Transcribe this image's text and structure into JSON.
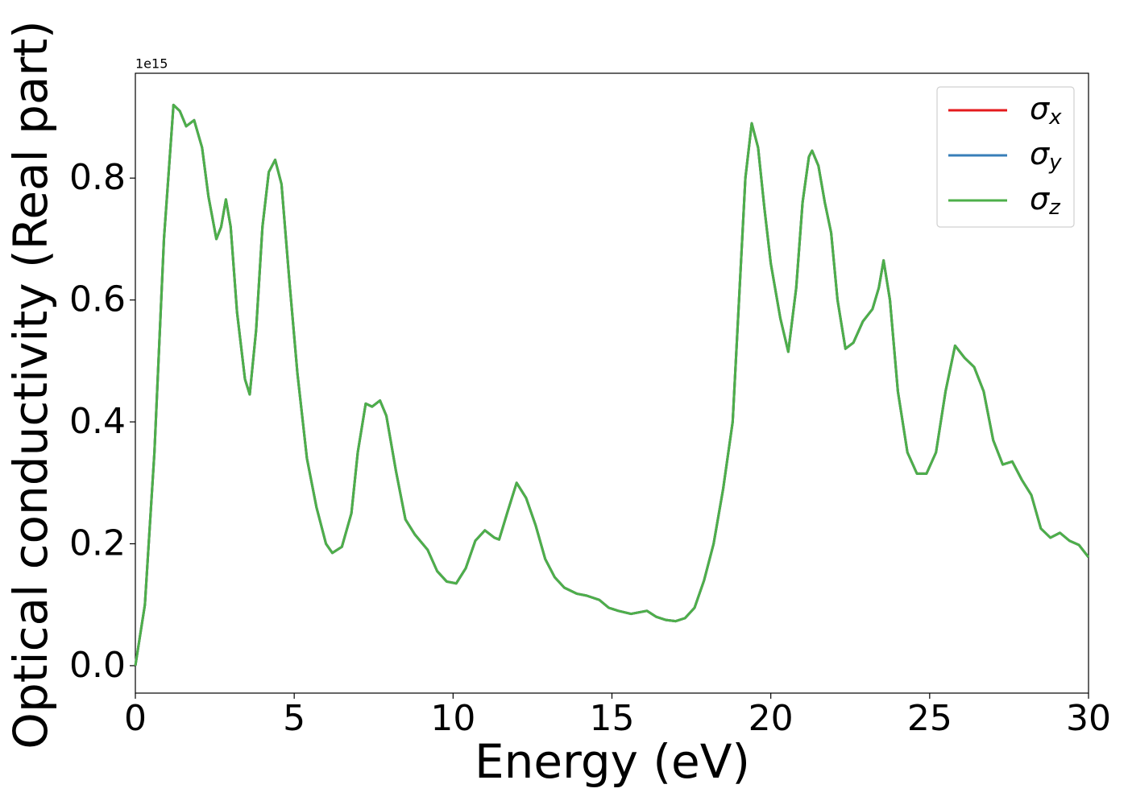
{
  "chart_data": {
    "type": "line",
    "xlabel": "Energy (eV)",
    "ylabel": "Optical conductivity (Real part)",
    "y_offset_label": "1e15",
    "x": [
      0,
      0.3,
      0.6,
      0.9,
      1.2,
      1.4,
      1.6,
      1.85,
      2.1,
      2.3,
      2.55,
      2.7,
      2.85,
      3.0,
      3.2,
      3.45,
      3.6,
      3.8,
      4.0,
      4.2,
      4.4,
      4.6,
      4.85,
      5.1,
      5.4,
      5.7,
      6.0,
      6.2,
      6.5,
      6.8,
      7.0,
      7.25,
      7.45,
      7.7,
      7.9,
      8.2,
      8.5,
      8.8,
      9.2,
      9.5,
      9.8,
      10.1,
      10.4,
      10.7,
      11.0,
      11.3,
      11.45,
      11.7,
      12.0,
      12.3,
      12.6,
      12.9,
      13.2,
      13.5,
      13.9,
      14.2,
      14.6,
      14.9,
      15.2,
      15.6,
      15.9,
      16.1,
      16.4,
      16.7,
      17.0,
      17.3,
      17.6,
      17.9,
      18.2,
      18.5,
      18.8,
      19.0,
      19.2,
      19.4,
      19.6,
      19.8,
      20.0,
      20.3,
      20.55,
      20.8,
      21.0,
      21.2,
      21.3,
      21.5,
      21.7,
      21.9,
      22.1,
      22.35,
      22.6,
      22.9,
      23.2,
      23.4,
      23.55,
      23.75,
      24.0,
      24.3,
      24.6,
      24.9,
      25.2,
      25.5,
      25.8,
      26.1,
      26.4,
      26.7,
      27.0,
      27.3,
      27.6,
      27.9,
      28.2,
      28.5,
      28.8,
      29.1,
      29.4,
      29.7,
      30.0
    ],
    "series": [
      {
        "name": "σx",
        "color": "#e41a1c",
        "values": [
          0,
          0.1,
          0.35,
          0.7,
          0.92,
          0.91,
          0.885,
          0.895,
          0.85,
          0.77,
          0.7,
          0.72,
          0.765,
          0.72,
          0.58,
          0.47,
          0.445,
          0.55,
          0.72,
          0.81,
          0.83,
          0.79,
          0.63,
          0.48,
          0.34,
          0.26,
          0.2,
          0.185,
          0.195,
          0.25,
          0.35,
          0.43,
          0.425,
          0.435,
          0.41,
          0.32,
          0.24,
          0.215,
          0.19,
          0.155,
          0.138,
          0.135,
          0.16,
          0.205,
          0.222,
          0.21,
          0.207,
          0.25,
          0.3,
          0.275,
          0.23,
          0.175,
          0.145,
          0.128,
          0.118,
          0.115,
          0.108,
          0.095,
          0.09,
          0.085,
          0.088,
          0.09,
          0.08,
          0.075,
          0.073,
          0.078,
          0.095,
          0.14,
          0.2,
          0.29,
          0.4,
          0.6,
          0.8,
          0.89,
          0.85,
          0.75,
          0.66,
          0.57,
          0.515,
          0.62,
          0.76,
          0.835,
          0.845,
          0.82,
          0.76,
          0.71,
          0.6,
          0.52,
          0.53,
          0.565,
          0.585,
          0.62,
          0.665,
          0.6,
          0.45,
          0.35,
          0.315,
          0.315,
          0.35,
          0.45,
          0.525,
          0.505,
          0.49,
          0.45,
          0.37,
          0.33,
          0.335,
          0.305,
          0.28,
          0.225,
          0.21,
          0.218,
          0.205,
          0.198,
          0.178
        ]
      },
      {
        "name": "σy",
        "color": "#377eb8",
        "values": [
          0,
          0.1,
          0.35,
          0.7,
          0.92,
          0.91,
          0.885,
          0.895,
          0.85,
          0.77,
          0.7,
          0.72,
          0.765,
          0.72,
          0.58,
          0.47,
          0.445,
          0.55,
          0.72,
          0.81,
          0.83,
          0.79,
          0.63,
          0.48,
          0.34,
          0.26,
          0.2,
          0.185,
          0.195,
          0.25,
          0.35,
          0.43,
          0.425,
          0.435,
          0.41,
          0.32,
          0.24,
          0.215,
          0.19,
          0.155,
          0.138,
          0.135,
          0.16,
          0.205,
          0.222,
          0.21,
          0.207,
          0.25,
          0.3,
          0.275,
          0.23,
          0.175,
          0.145,
          0.128,
          0.118,
          0.115,
          0.108,
          0.095,
          0.09,
          0.085,
          0.088,
          0.09,
          0.08,
          0.075,
          0.073,
          0.078,
          0.095,
          0.14,
          0.2,
          0.29,
          0.4,
          0.6,
          0.8,
          0.89,
          0.85,
          0.75,
          0.66,
          0.57,
          0.515,
          0.62,
          0.76,
          0.835,
          0.845,
          0.82,
          0.76,
          0.71,
          0.6,
          0.52,
          0.53,
          0.565,
          0.585,
          0.62,
          0.665,
          0.6,
          0.45,
          0.35,
          0.315,
          0.315,
          0.35,
          0.45,
          0.525,
          0.505,
          0.49,
          0.45,
          0.37,
          0.33,
          0.335,
          0.305,
          0.28,
          0.225,
          0.21,
          0.218,
          0.205,
          0.198,
          0.178
        ]
      },
      {
        "name": "σz",
        "color": "#4daf4a",
        "values": [
          0,
          0.1,
          0.35,
          0.7,
          0.92,
          0.91,
          0.885,
          0.895,
          0.85,
          0.77,
          0.7,
          0.72,
          0.765,
          0.72,
          0.58,
          0.47,
          0.445,
          0.55,
          0.72,
          0.81,
          0.83,
          0.79,
          0.63,
          0.48,
          0.34,
          0.26,
          0.2,
          0.185,
          0.195,
          0.25,
          0.35,
          0.43,
          0.425,
          0.435,
          0.41,
          0.32,
          0.24,
          0.215,
          0.19,
          0.155,
          0.138,
          0.135,
          0.16,
          0.205,
          0.222,
          0.21,
          0.207,
          0.25,
          0.3,
          0.275,
          0.23,
          0.175,
          0.145,
          0.128,
          0.118,
          0.115,
          0.108,
          0.095,
          0.09,
          0.085,
          0.088,
          0.09,
          0.08,
          0.075,
          0.073,
          0.078,
          0.095,
          0.14,
          0.2,
          0.29,
          0.4,
          0.6,
          0.8,
          0.89,
          0.85,
          0.75,
          0.66,
          0.57,
          0.515,
          0.62,
          0.76,
          0.835,
          0.845,
          0.82,
          0.76,
          0.71,
          0.6,
          0.52,
          0.53,
          0.565,
          0.585,
          0.62,
          0.665,
          0.6,
          0.45,
          0.35,
          0.315,
          0.315,
          0.35,
          0.45,
          0.525,
          0.505,
          0.49,
          0.45,
          0.37,
          0.33,
          0.335,
          0.305,
          0.28,
          0.225,
          0.21,
          0.218,
          0.205,
          0.198,
          0.178
        ]
      }
    ],
    "xlim": [
      0,
      30
    ],
    "xticks": [
      0,
      5,
      10,
      15,
      20,
      25,
      30
    ],
    "ylim": [
      -0.045,
      0.972
    ],
    "yticks": [
      {
        "value": 0,
        "label": "0.0"
      },
      0.2,
      0.4,
      0.6,
      0.8
    ],
    "grid": false,
    "legend": "upper right"
  }
}
